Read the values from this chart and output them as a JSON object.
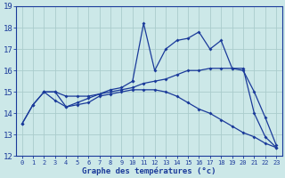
{
  "xlabel": "Graphe des températures (°c)",
  "background_color": "#cce8e8",
  "grid_color": "#aacccc",
  "line_color": "#1a3a9a",
  "xlim": [
    -0.5,
    23.5
  ],
  "ylim": [
    12,
    19
  ],
  "yticks": [
    12,
    13,
    14,
    15,
    16,
    17,
    18,
    19
  ],
  "xticks": [
    0,
    1,
    2,
    3,
    4,
    5,
    6,
    7,
    8,
    9,
    10,
    11,
    12,
    13,
    14,
    15,
    16,
    17,
    18,
    19,
    20,
    21,
    22,
    23
  ],
  "series_spiky_x": [
    10,
    11,
    12,
    13,
    14,
    15,
    16,
    17,
    18,
    19,
    20,
    21,
    22,
    23
  ],
  "series_spiky_y": [
    15.5,
    18.2,
    16.0,
    17.0,
    17.4,
    17.5,
    17.8,
    17.0,
    17.4,
    16.1,
    16.1,
    14.0,
    12.9,
    12.4
  ],
  "series_smooth_x": [
    0,
    1,
    2,
    3,
    4,
    5,
    6,
    7,
    8,
    9,
    10,
    11,
    12,
    13,
    14,
    15,
    16,
    17,
    18,
    19,
    20,
    21,
    22,
    23
  ],
  "series_smooth_y": [
    13.5,
    14.4,
    15.0,
    15.0,
    14.8,
    14.8,
    14.8,
    14.9,
    15.0,
    15.1,
    15.2,
    15.4,
    15.5,
    15.6,
    15.8,
    16.0,
    16.0,
    16.1,
    16.1,
    16.1,
    16.0,
    15.0,
    13.8,
    12.5
  ],
  "series_low_x": [
    0,
    1,
    2,
    3,
    4,
    5,
    6,
    7,
    8,
    9,
    10,
    11,
    12,
    13,
    14,
    15,
    16,
    17,
    18,
    19,
    20,
    21,
    22,
    23
  ],
  "series_low_y": [
    13.5,
    14.4,
    15.0,
    14.6,
    14.3,
    14.4,
    14.5,
    14.8,
    14.9,
    15.0,
    15.1,
    15.1,
    15.1,
    15.0,
    14.8,
    14.5,
    14.2,
    14.0,
    13.7,
    13.4,
    13.1,
    12.9,
    12.6,
    12.4
  ],
  "series_local_x": [
    2,
    3,
    4,
    5,
    6,
    7,
    8,
    9,
    10
  ],
  "series_local_y": [
    15.0,
    15.0,
    14.3,
    14.5,
    14.7,
    14.9,
    15.1,
    15.2,
    15.5
  ]
}
